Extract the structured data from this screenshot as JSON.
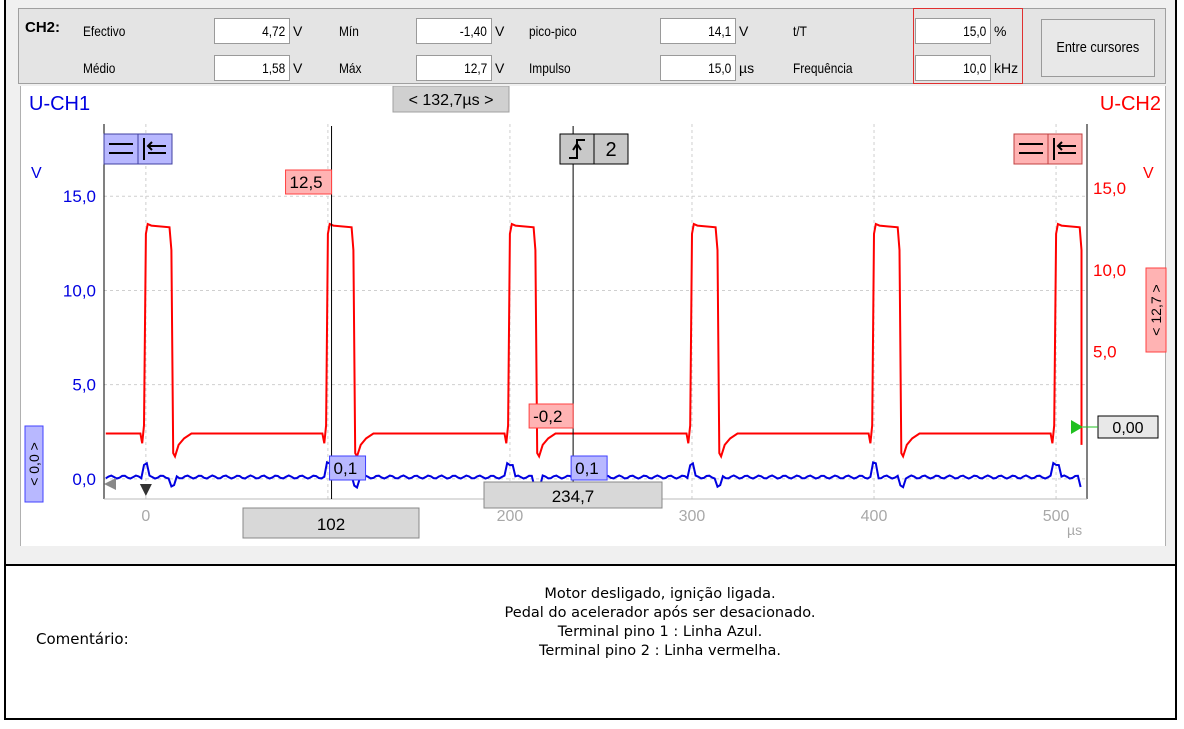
{
  "measurements": {
    "channel": "CH2:",
    "rows": [
      [
        {
          "label": "Efectivo",
          "value": "4,72",
          "unit": "V"
        },
        {
          "label": "Mín",
          "value": "-1,40",
          "unit": "V"
        },
        {
          "label": "pico-pico",
          "value": "14,1",
          "unit": "V"
        },
        {
          "label": "t/T",
          "value": "15,0",
          "unit": "%"
        }
      ],
      [
        {
          "label": "Médio",
          "value": "1,58",
          "unit": "V"
        },
        {
          "label": "Máx",
          "value": "12,7",
          "unit": "V"
        },
        {
          "label": "Impulso",
          "value": "15,0",
          "unit": "µs"
        },
        {
          "label": "Frequência",
          "value": "10,0",
          "unit": "kHz"
        }
      ]
    ],
    "button": "Entre cursores",
    "highlight_color": "#e03030"
  },
  "chart_data": {
    "type": "line",
    "channels": {
      "left": "U-CH1",
      "right": "U-CH2"
    },
    "colors": {
      "ch1": "#0000e0",
      "ch2": "#ff0000"
    },
    "cursor_delta": "< 132,7µs >",
    "x_axis": {
      "unit": "µs",
      "ticks": [
        0,
        100,
        200,
        300,
        400,
        500
      ],
      "tick_labels": [
        "0",
        "100",
        "200",
        "300",
        "400",
        "500"
      ],
      "range": [
        -23,
        517
      ]
    },
    "y_left": {
      "unit": "V",
      "ticks": [
        0,
        5,
        10,
        15
      ],
      "tick_labels": [
        "0,0",
        "5,0",
        "10,0",
        "15,0"
      ],
      "range": [
        -0.8,
        18.3
      ]
    },
    "y_right": {
      "unit": "V",
      "ticks": [
        5,
        10,
        15
      ],
      "tick_labels": [
        "5,0",
        "10,0",
        "15,0"
      ],
      "range": [
        -3.7,
        18.3
      ]
    },
    "ch1_offset": "< 0,0 >",
    "ch2_offset": "< 12,7 >",
    "ch2_ref_value": "0,00",
    "trigger_label": "2",
    "cursor_readouts": {
      "cursor1_ch2": "12,5",
      "cursor1_ch1": "0,1",
      "cursor2_ch2": "-0,2",
      "cursor2_ch1": "0,1"
    },
    "cursor_positions": {
      "cursor1": "102",
      "cursor2": "234,7"
    },
    "cursors_x": [
      102,
      234.7
    ],
    "ch2_signal": {
      "period": 100,
      "rise_times": [
        0,
        100,
        200,
        300,
        400,
        500
      ],
      "high": 12.7,
      "low": 0.0,
      "min": -1.4,
      "pulse_width": 15
    },
    "ch1_signal": {
      "baseline": 0.1
    }
  },
  "comment": {
    "label": "Comentário:",
    "lines": [
      "Motor desligado, ignição ligada.",
      "Pedal do acelerador após ser desacionado.",
      "Terminal pino 1 : Linha Azul.",
      "Terminal pino 2 : Linha vermelha."
    ]
  }
}
